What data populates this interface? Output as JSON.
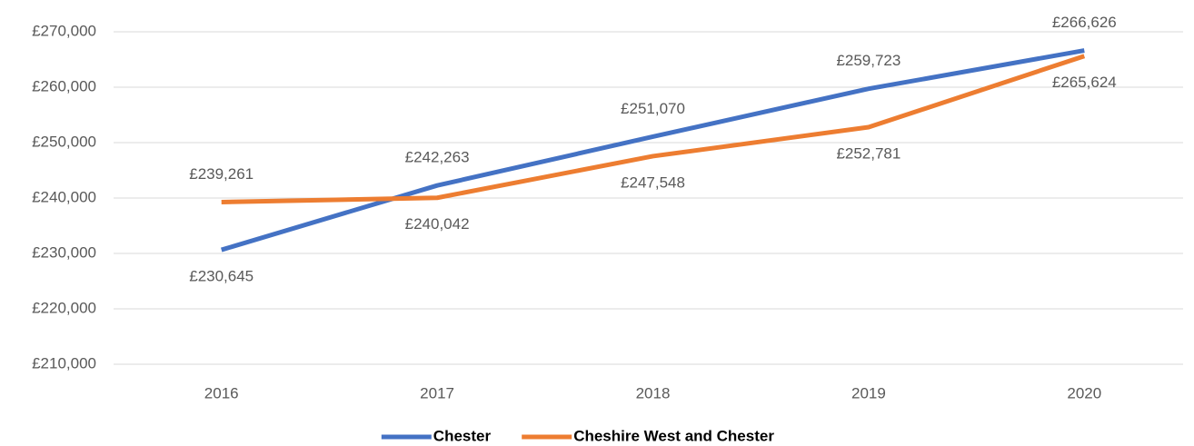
{
  "chart_data": {
    "type": "line",
    "categories": [
      "2016",
      "2017",
      "2018",
      "2019",
      "2020"
    ],
    "series": [
      {
        "name": "Chester",
        "color": "#4472c4",
        "values": [
          230645,
          242263,
          251070,
          259723,
          266626
        ],
        "value_labels": [
          "£230,645",
          "£242,263",
          "£251,070",
          "£259,723",
          "£266,626"
        ]
      },
      {
        "name": "Cheshire West and Chester",
        "color": "#ed7d31",
        "values": [
          239261,
          240042,
          247548,
          252781,
          265624
        ],
        "value_labels": [
          "£239,261",
          "£240,042",
          "£247,548",
          "£252,781",
          "£265,624"
        ]
      }
    ],
    "ylim": [
      210000,
      270000
    ],
    "yticks": [
      {
        "value": 210000,
        "label": "£210,000"
      },
      {
        "value": 220000,
        "label": "£220,000"
      },
      {
        "value": 230000,
        "label": "£230,000"
      },
      {
        "value": 240000,
        "label": "£240,000"
      },
      {
        "value": 250000,
        "label": "£250,000"
      },
      {
        "value": 260000,
        "label": "£260,000"
      },
      {
        "value": 270000,
        "label": "£270,000"
      }
    ],
    "grid": true,
    "legend": "bottom"
  }
}
